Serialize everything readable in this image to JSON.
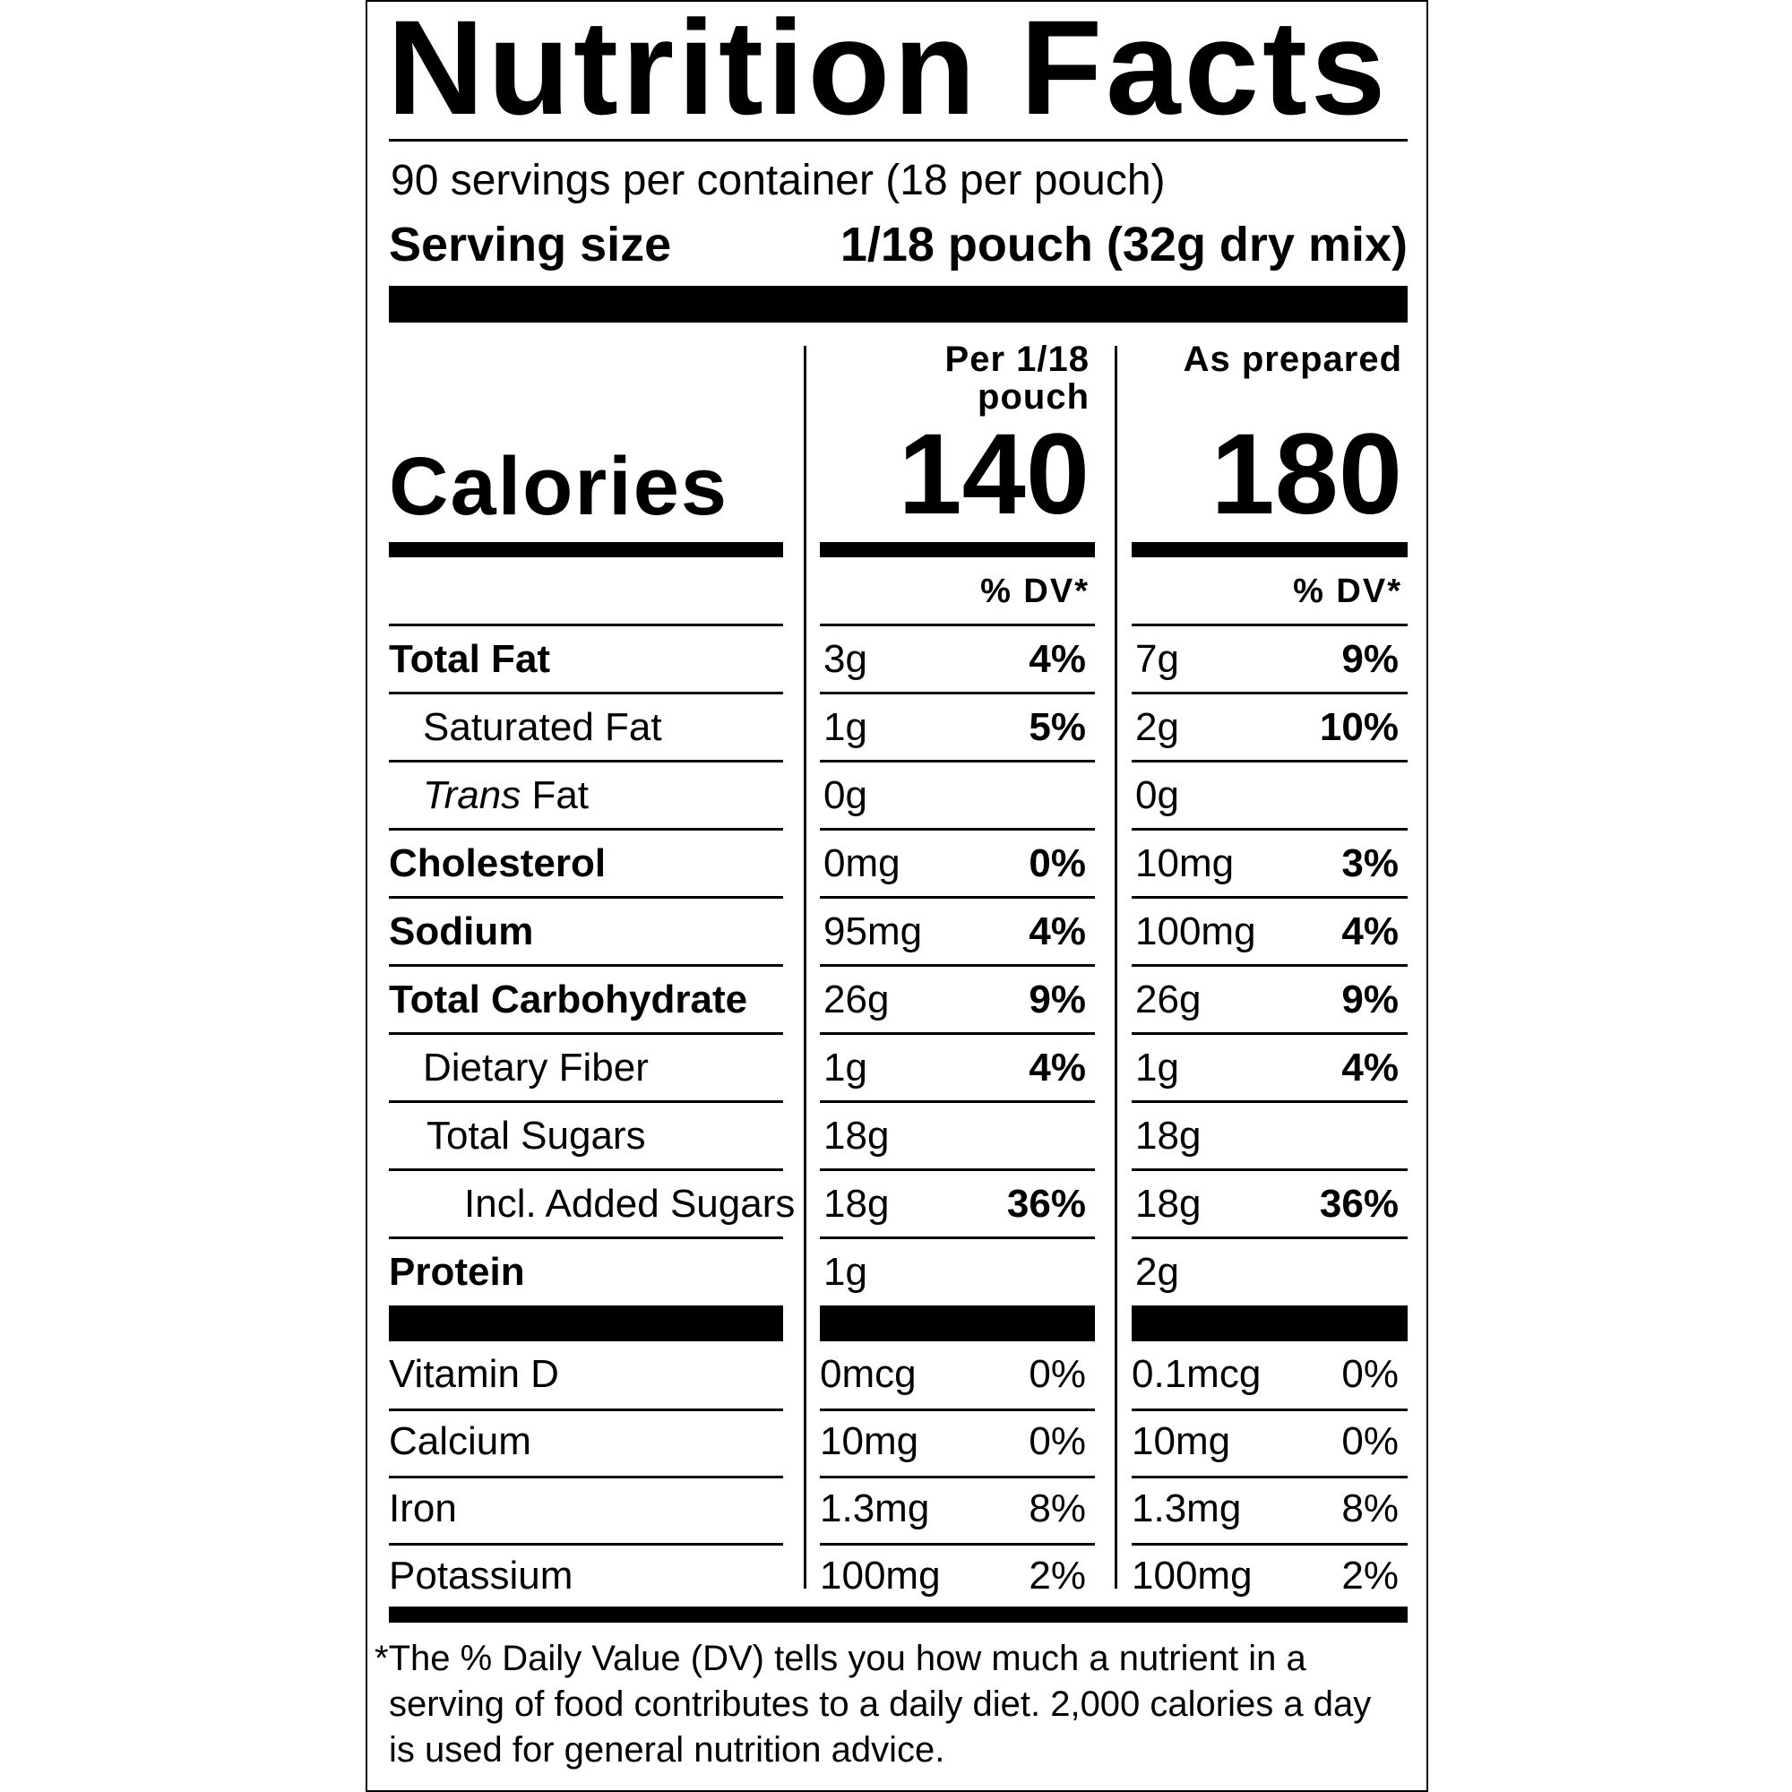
{
  "title": "Nutrition Facts",
  "servings": "90 servings per container (18 per pouch)",
  "serving_size": {
    "label": "Serving size",
    "value": "1/18 pouch (32g dry mix)"
  },
  "calories_label": "Calories",
  "columns": [
    {
      "header": "Per 1/18 pouch",
      "calories": 140,
      "dv_header": "% DV*"
    },
    {
      "header": "As prepared",
      "calories": 180,
      "dv_header": "% DV*"
    }
  ],
  "nutrients": [
    {
      "name": "Total Fat",
      "level": 0,
      "values": [
        {
          "amount": "3g",
          "dv": "4%"
        },
        {
          "amount": "7g",
          "dv": "9%"
        }
      ]
    },
    {
      "name": "Saturated Fat",
      "level": 1,
      "values": [
        {
          "amount": "1g",
          "dv": "5%"
        },
        {
          "amount": "2g",
          "dv": "10%"
        }
      ]
    },
    {
      "name_italic": "Trans",
      "name": "Fat",
      "level": 1,
      "values": [
        {
          "amount": "0g",
          "dv": null
        },
        {
          "amount": "0g",
          "dv": null
        }
      ]
    },
    {
      "name": "Cholesterol",
      "level": 0,
      "values": [
        {
          "amount": "0mg",
          "dv": "0%"
        },
        {
          "amount": "10mg",
          "dv": "3%"
        }
      ]
    },
    {
      "name": "Sodium",
      "level": 0,
      "values": [
        {
          "amount": "95mg",
          "dv": "4%"
        },
        {
          "amount": "100mg",
          "dv": "4%"
        }
      ]
    },
    {
      "name": "Total Carbohydrate",
      "level": 0,
      "values": [
        {
          "amount": "26g",
          "dv": "9%"
        },
        {
          "amount": "26g",
          "dv": "9%"
        }
      ]
    },
    {
      "name": "Dietary Fiber",
      "level": 1,
      "values": [
        {
          "amount": "1g",
          "dv": "4%"
        },
        {
          "amount": "1g",
          "dv": "4%"
        }
      ]
    },
    {
      "name": "Total Sugars",
      "level": 1,
      "values": [
        {
          "amount": "18g",
          "dv": null
        },
        {
          "amount": "18g",
          "dv": null
        }
      ]
    },
    {
      "name": "Incl. Added Sugars",
      "level": 2,
      "values": [
        {
          "amount": "18g",
          "dv": "36%"
        },
        {
          "amount": "18g",
          "dv": "36%"
        }
      ]
    },
    {
      "name": "Protein",
      "level": 0,
      "values": [
        {
          "amount": "1g",
          "dv": null
        },
        {
          "amount": "2g",
          "dv": null
        }
      ]
    }
  ],
  "vitamins": [
    {
      "name": "Vitamin D",
      "values": [
        {
          "amount": "0mcg",
          "dv": "0%"
        },
        {
          "amount": "0.1mcg",
          "dv": "0%"
        }
      ]
    },
    {
      "name": "Calcium",
      "values": [
        {
          "amount": "10mg",
          "dv": "0%"
        },
        {
          "amount": "10mg",
          "dv": "0%"
        }
      ]
    },
    {
      "name": "Iron",
      "values": [
        {
          "amount": "1.3mg",
          "dv": "8%"
        },
        {
          "amount": "1.3mg",
          "dv": "8%"
        }
      ]
    },
    {
      "name": "Potassium",
      "values": [
        {
          "amount": "100mg",
          "dv": "2%"
        },
        {
          "amount": "100mg",
          "dv": "2%"
        }
      ]
    }
  ],
  "footnote": "*The % Daily Value (DV) tells you how much a nutrient in a serving of food contributes to a daily diet. 2,000 calories a day is used for general nutrition advice."
}
